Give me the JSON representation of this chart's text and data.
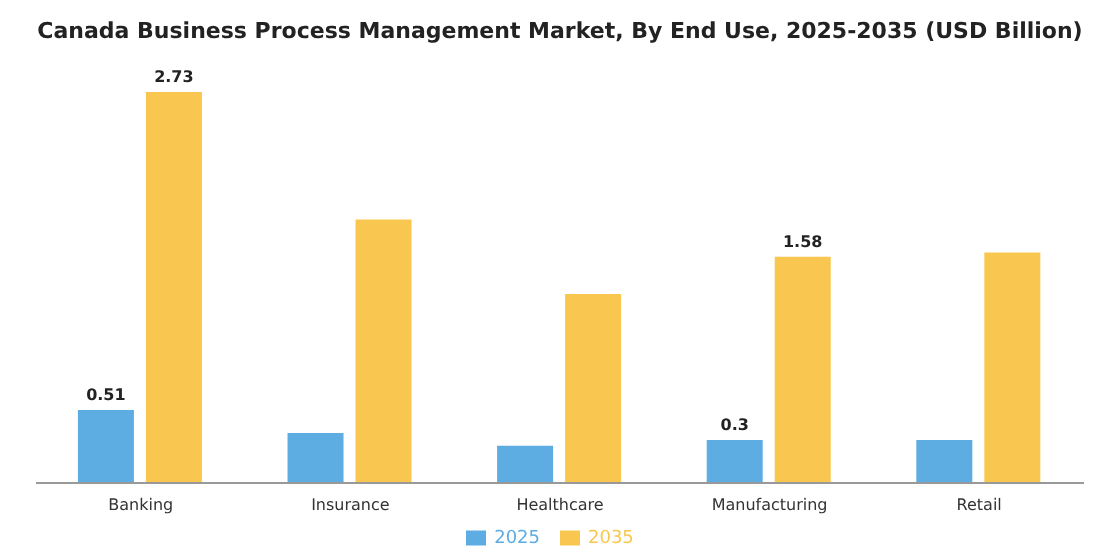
{
  "chart_data": {
    "type": "bar",
    "title": "Canada Business Process Management Market, By End Use, 2025-2035 (USD Billion)",
    "categories": [
      "Banking",
      "Insurance",
      "Healthcare",
      "Manufacturing",
      "Retail"
    ],
    "series": [
      {
        "name": "2025",
        "color": "#5dade2",
        "values": [
          0.51,
          0.35,
          0.26,
          0.3,
          0.3
        ],
        "value_labels": [
          "0.51",
          null,
          null,
          "0.3",
          null
        ]
      },
      {
        "name": "2035",
        "color": "#f9c74f",
        "values": [
          2.73,
          1.84,
          1.32,
          1.58,
          1.61
        ],
        "value_labels": [
          "2.73",
          null,
          null,
          "1.58",
          null
        ]
      }
    ],
    "legend": "bottom",
    "grid": false
  }
}
